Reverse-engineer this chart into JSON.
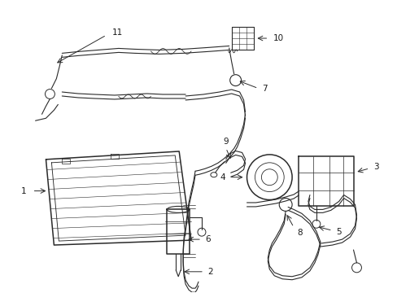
{
  "bg_color": "#ffffff",
  "line_color": "#2a2a2a",
  "label_color": "#1a1a1a",
  "fig_width": 4.89,
  "fig_height": 3.6,
  "dpi": 100
}
